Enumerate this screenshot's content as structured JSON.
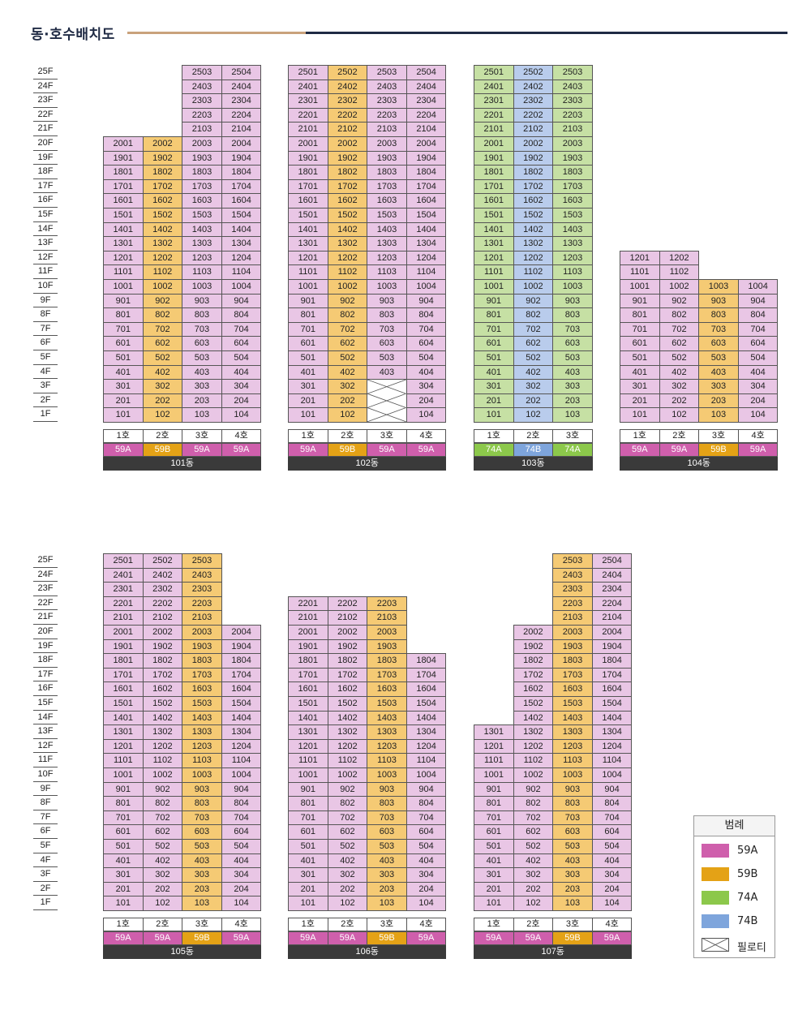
{
  "title": "동·호수배치도",
  "colors": {
    "59A": "#e9c6e5",
    "59B": "#f5ca74",
    "74A": "#c6e0a4",
    "74B": "#b9ccec"
  },
  "type_colors": {
    "59A": "#cf5fac",
    "59B": "#e4a216",
    "74A": "#8cc84b",
    "74B": "#7ea5dc"
  },
  "legend": {
    "title": "범례",
    "items": [
      {
        "type": "59A",
        "label": "59A"
      },
      {
        "type": "59B",
        "label": "59B"
      },
      {
        "type": "74A",
        "label": "74A"
      },
      {
        "type": "74B",
        "label": "74B"
      },
      {
        "type": "pilotis",
        "label": "필로티"
      }
    ]
  },
  "floor_labels": [
    "25F",
    "24F",
    "23F",
    "22F",
    "21F",
    "20F",
    "19F",
    "18F",
    "17F",
    "16F",
    "15F",
    "14F",
    "13F",
    "12F",
    "11F",
    "10F",
    "9F",
    "8F",
    "7F",
    "6F",
    "5F",
    "4F",
    "3F",
    "2F",
    "1F"
  ],
  "buildings": [
    {
      "name": "101동",
      "row": 0,
      "col": 0,
      "lines": [
        {
          "hoc": "1호",
          "type": "59A",
          "top": 20,
          "pilotis": []
        },
        {
          "hoc": "2호",
          "type": "59B",
          "top": 20,
          "pilotis": []
        },
        {
          "hoc": "3호",
          "type": "59A",
          "top": 25,
          "pilotis": []
        },
        {
          "hoc": "4호",
          "type": "59A",
          "top": 25,
          "pilotis": []
        }
      ]
    },
    {
      "name": "102동",
      "row": 0,
      "col": 1,
      "lines": [
        {
          "hoc": "1호",
          "type": "59A",
          "top": 25,
          "pilotis": []
        },
        {
          "hoc": "2호",
          "type": "59B",
          "top": 25,
          "pilotis": []
        },
        {
          "hoc": "3호",
          "type": "59A",
          "top": 25,
          "pilotis": [
            1,
            2,
            3
          ]
        },
        {
          "hoc": "4호",
          "type": "59A",
          "top": 25,
          "pilotis": []
        }
      ]
    },
    {
      "name": "103동",
      "row": 0,
      "col": 2,
      "lines": [
        {
          "hoc": "1호",
          "type": "74A",
          "top": 25,
          "pilotis": []
        },
        {
          "hoc": "2호",
          "type": "74B",
          "top": 25,
          "pilotis": []
        },
        {
          "hoc": "3호",
          "type": "74A",
          "top": 25,
          "pilotis": []
        }
      ]
    },
    {
      "name": "104동",
      "row": 0,
      "col": 3,
      "lines": [
        {
          "hoc": "1호",
          "type": "59A",
          "top": 12,
          "pilotis": []
        },
        {
          "hoc": "2호",
          "type": "59A",
          "top": 12,
          "pilotis": []
        },
        {
          "hoc": "3호",
          "type": "59B",
          "top": 10,
          "pilotis": []
        },
        {
          "hoc": "4호",
          "type": "59A",
          "top": 10,
          "pilotis": []
        }
      ]
    },
    {
      "name": "105동",
      "row": 1,
      "col": 0,
      "lines": [
        {
          "hoc": "1호",
          "type": "59A",
          "top": 25,
          "pilotis": []
        },
        {
          "hoc": "2호",
          "type": "59A",
          "top": 25,
          "pilotis": []
        },
        {
          "hoc": "3호",
          "type": "59B",
          "top": 25,
          "pilotis": []
        },
        {
          "hoc": "4호",
          "type": "59A",
          "top": 20,
          "pilotis": []
        }
      ]
    },
    {
      "name": "106동",
      "row": 1,
      "col": 1,
      "lines": [
        {
          "hoc": "1호",
          "type": "59A",
          "top": 22,
          "pilotis": []
        },
        {
          "hoc": "2호",
          "type": "59A",
          "top": 22,
          "pilotis": []
        },
        {
          "hoc": "3호",
          "type": "59B",
          "top": 22,
          "pilotis": []
        },
        {
          "hoc": "4호",
          "type": "59A",
          "top": 18,
          "pilotis": []
        }
      ]
    },
    {
      "name": "107동",
      "row": 1,
      "col": 2,
      "lines": [
        {
          "hoc": "1호",
          "type": "59A",
          "top": 13,
          "pilotis": []
        },
        {
          "hoc": "2호",
          "type": "59A",
          "top": 20,
          "pilotis": []
        },
        {
          "hoc": "3호",
          "type": "59B",
          "top": 25,
          "pilotis": []
        },
        {
          "hoc": "4호",
          "type": "59A",
          "top": 25,
          "pilotis": []
        }
      ]
    }
  ]
}
